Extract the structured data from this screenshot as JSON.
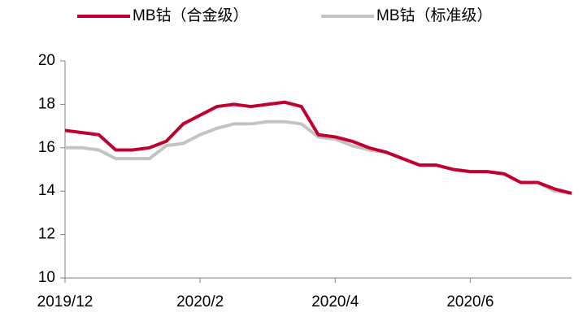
{
  "chart_data": {
    "type": "line",
    "categories": [
      "2019/12",
      null,
      null,
      null,
      null,
      null,
      null,
      null,
      "2020/2",
      null,
      null,
      null,
      null,
      null,
      null,
      null,
      "2020/4",
      null,
      null,
      null,
      null,
      null,
      null,
      null,
      "2020/6",
      null,
      null,
      null,
      null,
      null,
      null
    ],
    "series": [
      {
        "name": "MB钴（合金级）",
        "color": "#c0002f",
        "values": [
          16.8,
          16.7,
          16.6,
          15.9,
          15.9,
          16.0,
          16.3,
          17.1,
          17.5,
          17.9,
          18.0,
          17.9,
          18.0,
          18.1,
          17.9,
          16.6,
          16.5,
          16.3,
          16.0,
          15.8,
          15.5,
          15.2,
          15.2,
          15.0,
          14.9,
          14.9,
          14.8,
          14.4,
          14.4,
          14.1,
          13.9
        ]
      },
      {
        "name": "MB钴（标准级）",
        "color": "#c3c3c3",
        "values": [
          16.0,
          16.0,
          15.9,
          15.5,
          15.5,
          15.5,
          16.1,
          16.2,
          16.6,
          16.9,
          17.1,
          17.1,
          17.2,
          17.2,
          17.1,
          16.5,
          16.4,
          16.1,
          15.9,
          15.8,
          15.5,
          15.2,
          15.2,
          15.0,
          14.9,
          14.9,
          14.8,
          14.4,
          14.4,
          14.0,
          13.9
        ]
      }
    ],
    "ylim": [
      10,
      20
    ],
    "yticks": [
      10,
      12,
      14,
      16,
      18,
      20
    ],
    "grid": false,
    "legend": "top"
  }
}
